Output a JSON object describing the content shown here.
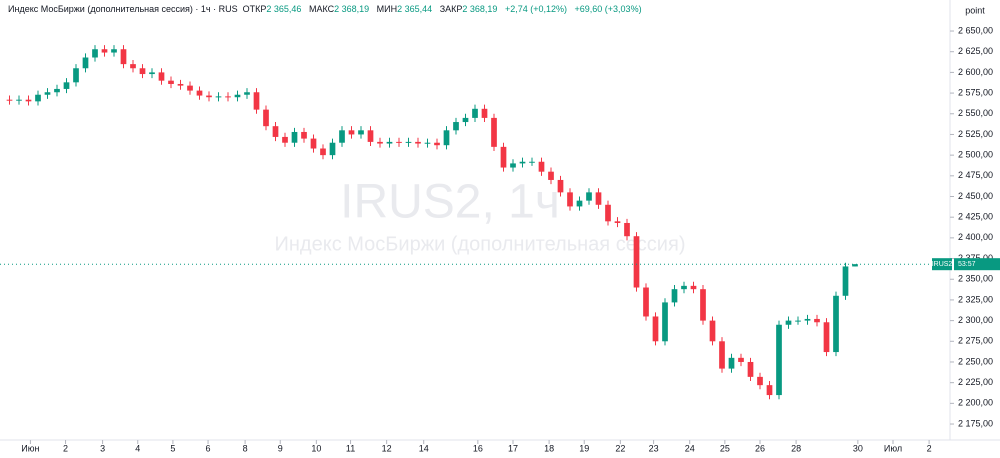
{
  "chart_data": {
    "type": "candlestick",
    "legend": {
      "title": "Индекс МосБиржи (дополнительная сессия) · 1ч · RUS",
      "items": [
        {
          "label": "ОТКР",
          "value": "2 365,46"
        },
        {
          "label": "МАКС",
          "value": "2 368,19"
        },
        {
          "label": "МИН",
          "value": "2 365,44"
        },
        {
          "label": "ЗАКР",
          "value": "2 368,19"
        }
      ],
      "change": "+2,74 (+0,12%)",
      "change_total": "+69,60 (+3,03%)"
    },
    "watermark": "IRUS2, 1ч",
    "watermark_subtitle": "Индекс МосБиржи (дополнительная сессия)",
    "unit_label": "point",
    "price_tag": {
      "symbol": "IRUS2",
      "timer": "53:57"
    },
    "up_color": "#089981",
    "down_color": "#f23645",
    "x": [
      1,
      2,
      3,
      4,
      5,
      6,
      7,
      8,
      9,
      10,
      11,
      12,
      13,
      14,
      15,
      16,
      17,
      18,
      19,
      20,
      21,
      22,
      23,
      24,
      25,
      26,
      27,
      28,
      29,
      30,
      31,
      32,
      33,
      34,
      35,
      36,
      37,
      38,
      39,
      40,
      41,
      42,
      43,
      44,
      45,
      46,
      47,
      48,
      49,
      50,
      51,
      52,
      53,
      54,
      55,
      56,
      57,
      58,
      59,
      60,
      61,
      62,
      63,
      64,
      65,
      66,
      67,
      68,
      69,
      70,
      71,
      72,
      73,
      74,
      75,
      76,
      77,
      78,
      79,
      80,
      81,
      82,
      83,
      84,
      85,
      86,
      87,
      88,
      89,
      90
    ],
    "open": [
      2567,
      2566,
      2567,
      2565,
      2573,
      2576,
      2580,
      2588,
      2605,
      2618,
      2628,
      2624,
      2628,
      2610,
      2605,
      2598,
      2600,
      2590,
      2586,
      2584,
      2578,
      2572,
      2570,
      2571,
      2570,
      2573,
      2576,
      2555,
      2535,
      2522,
      2515,
      2528,
      2520,
      2508,
      2500,
      2515,
      2530,
      2525,
      2530,
      2516,
      2514,
      2516,
      2515,
      2516,
      2514,
      2515,
      2512,
      2530,
      2540,
      2545,
      2556,
      2545,
      2510,
      2485,
      2490,
      2492,
      2492,
      2480,
      2470,
      2455,
      2438,
      2445,
      2455,
      2440,
      2420,
      2418,
      2402,
      2340,
      2305,
      2275,
      2322,
      2338,
      2342,
      2338,
      2300,
      2275,
      2242,
      2255,
      2250,
      2232,
      2222,
      2210,
      2295,
      2300,
      2300,
      2302,
      2298,
      2262,
      2330,
      2365.46
    ],
    "high": [
      2572,
      2572,
      2572,
      2578,
      2581,
      2585,
      2593,
      2610,
      2623,
      2633,
      2633,
      2633,
      2633,
      2615,
      2610,
      2605,
      2605,
      2595,
      2591,
      2589,
      2583,
      2577,
      2576,
      2576,
      2578,
      2581,
      2581,
      2560,
      2540,
      2527,
      2533,
      2533,
      2525,
      2513,
      2520,
      2535,
      2535,
      2535,
      2535,
      2521,
      2521,
      2521,
      2521,
      2521,
      2520,
      2520,
      2535,
      2545,
      2550,
      2561,
      2561,
      2550,
      2515,
      2495,
      2497,
      2497,
      2497,
      2485,
      2475,
      2460,
      2450,
      2460,
      2460,
      2445,
      2425,
      2423,
      2407,
      2345,
      2310,
      2327,
      2343,
      2347,
      2347,
      2343,
      2305,
      2280,
      2260,
      2260,
      2255,
      2237,
      2227,
      2300,
      2305,
      2305,
      2307,
      2307,
      2303,
      2335,
      2370,
      2368.19
    ],
    "low": [
      2561,
      2561,
      2560,
      2560,
      2568,
      2571,
      2575,
      2583,
      2600,
      2613,
      2619,
      2619,
      2605,
      2600,
      2593,
      2593,
      2585,
      2581,
      2579,
      2573,
      2567,
      2565,
      2565,
      2565,
      2565,
      2568,
      2550,
      2530,
      2517,
      2510,
      2510,
      2515,
      2503,
      2495,
      2495,
      2510,
      2520,
      2520,
      2511,
      2509,
      2509,
      2510,
      2510,
      2509,
      2509,
      2507,
      2507,
      2525,
      2535,
      2540,
      2540,
      2505,
      2480,
      2480,
      2485,
      2487,
      2475,
      2465,
      2450,
      2433,
      2433,
      2440,
      2435,
      2415,
      2413,
      2397,
      2335,
      2300,
      2270,
      2270,
      2317,
      2333,
      2333,
      2295,
      2270,
      2237,
      2237,
      2245,
      2227,
      2217,
      2205,
      2205,
      2290,
      2295,
      2295,
      2293,
      2257,
      2257,
      2325,
      2365.44
    ],
    "close": [
      2566,
      2567,
      2565,
      2573,
      2576,
      2580,
      2588,
      2605,
      2618,
      2628,
      2624,
      2628,
      2610,
      2605,
      2598,
      2600,
      2590,
      2586,
      2584,
      2578,
      2572,
      2570,
      2571,
      2570,
      2573,
      2576,
      2555,
      2535,
      2522,
      2515,
      2528,
      2520,
      2508,
      2500,
      2515,
      2530,
      2525,
      2530,
      2516,
      2514,
      2516,
      2515,
      2516,
      2514,
      2515,
      2512,
      2530,
      2540,
      2545,
      2556,
      2545,
      2510,
      2485,
      2490,
      2492,
      2492,
      2480,
      2470,
      2455,
      2438,
      2445,
      2455,
      2440,
      2420,
      2418,
      2402,
      2340,
      2305,
      2275,
      2322,
      2338,
      2342,
      2338,
      2300,
      2275,
      2242,
      2255,
      2250,
      2232,
      2222,
      2210,
      2295,
      2300,
      2300,
      2302,
      2298,
      2262,
      2330,
      2365.46,
      2368.19
    ],
    "xlim": [
      0,
      100
    ],
    "xticks": [
      {
        "value": 3.2,
        "label": "Июн"
      },
      {
        "value": 6.9,
        "label": "2"
      },
      {
        "value": 10.8,
        "label": "3"
      },
      {
        "value": 14.5,
        "label": "4"
      },
      {
        "value": 18.2,
        "label": "5"
      },
      {
        "value": 21.9,
        "label": "6"
      },
      {
        "value": 25.8,
        "label": "8"
      },
      {
        "value": 29.5,
        "label": "9"
      },
      {
        "value": 33.3,
        "label": "10"
      },
      {
        "value": 36.9,
        "label": "11"
      },
      {
        "value": 40.7,
        "label": "12"
      },
      {
        "value": 44.6,
        "label": "14"
      },
      {
        "value": 50.3,
        "label": "16"
      },
      {
        "value": 54,
        "label": "17"
      },
      {
        "value": 57.8,
        "label": "18"
      },
      {
        "value": 61.5,
        "label": "19"
      },
      {
        "value": 65.3,
        "label": "22"
      },
      {
        "value": 68.8,
        "label": "23"
      },
      {
        "value": 72.6,
        "label": "24"
      },
      {
        "value": 76.3,
        "label": "25"
      },
      {
        "value": 80,
        "label": "26"
      },
      {
        "value": 83.8,
        "label": "28"
      },
      {
        "value": 90.3,
        "label": "30"
      },
      {
        "value": 94,
        "label": "Июл"
      },
      {
        "value": 97.8,
        "label": "2"
      }
    ],
    "ylim": [
      2155.7,
      2687.5
    ],
    "yticks": [
      {
        "value": 2650,
        "label": "2 650,00"
      },
      {
        "value": 2625,
        "label": "2 625,00"
      },
      {
        "value": 2600,
        "label": "2 600,00"
      },
      {
        "value": 2575,
        "label": "2 575,00"
      },
      {
        "value": 2550,
        "label": "2 550,00"
      },
      {
        "value": 2525,
        "label": "2 525,00"
      },
      {
        "value": 2500,
        "label": "2 500,00"
      },
      {
        "value": 2475,
        "label": "2 475,00"
      },
      {
        "value": 2450,
        "label": "2 450,00"
      },
      {
        "value": 2425,
        "label": "2 425,00"
      },
      {
        "value": 2400,
        "label": "2 400,00"
      },
      {
        "value": 2375,
        "label": "2 375,00"
      },
      {
        "value": 2350,
        "label": "2 350,00"
      },
      {
        "value": 2325,
        "label": "2 325,00"
      },
      {
        "value": 2300,
        "label": "2 300,00"
      },
      {
        "value": 2275,
        "label": "2 275,00"
      },
      {
        "value": 2250,
        "label": "2 250,00"
      },
      {
        "value": 2225,
        "label": "2 225,00"
      },
      {
        "value": 2200,
        "label": "2 200,00"
      },
      {
        "value": 2175,
        "label": "2 175,00"
      }
    ]
  }
}
